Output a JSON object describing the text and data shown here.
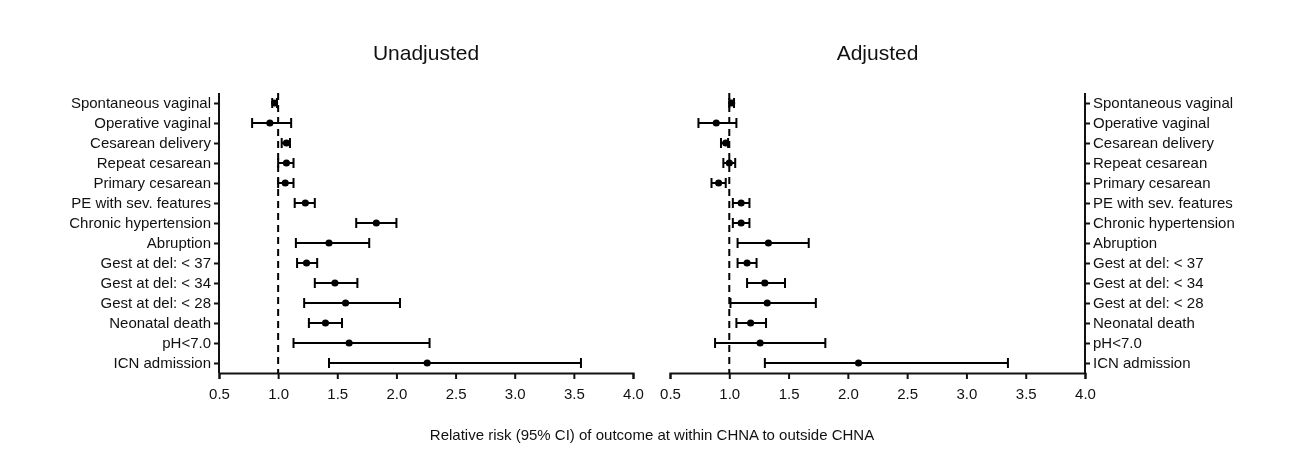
{
  "chart_data": [
    {
      "type": "scatter",
      "title": "Unadjusted",
      "xlabel": "Relative risk (95% CI) of outcome at within CHNA to outside CHNA",
      "orientation": "horizontal",
      "marker": "circle",
      "grid": false,
      "categories": [
        "Spontaneous vaginal",
        "Operative vaginal",
        "Cesarean delivery",
        "Repeat cesarean",
        "Primary cesarean",
        "PE with sev. features",
        "Chronic hypertension",
        "Abruption",
        "Gest at del: < 37",
        "Gest at del: < 34",
        "Gest at del: < 28",
        "Neonatal death",
        "pH<7.0",
        "ICN admission"
      ],
      "series": [
        {
          "color": "#000000",
          "values": [
            0.97,
            0.93,
            1.07,
            1.07,
            1.06,
            1.23,
            1.83,
            1.43,
            1.24,
            1.48,
            1.57,
            1.4,
            1.6,
            2.26
          ],
          "errors": [
            [
              0.95,
              0.99
            ],
            [
              0.78,
              1.11
            ],
            [
              1.03,
              1.1
            ],
            [
              1.0,
              1.13
            ],
            [
              1.0,
              1.13
            ],
            [
              1.14,
              1.31
            ],
            [
              1.66,
              2.0
            ],
            [
              1.15,
              1.77
            ],
            [
              1.16,
              1.33
            ],
            [
              1.31,
              1.67
            ],
            [
              1.22,
              2.03
            ],
            [
              1.26,
              1.54
            ],
            [
              1.13,
              2.28
            ],
            [
              1.43,
              3.56
            ]
          ]
        }
      ],
      "xlim": [
        0.5,
        4.0
      ],
      "xticks": [
        {
          "value": 0.5,
          "label": "0.5"
        },
        {
          "value": 1,
          "label": "1.0"
        },
        {
          "value": 1.5,
          "label": "1.5"
        },
        {
          "value": 2,
          "label": "2.0"
        },
        {
          "value": 2.5,
          "label": "2.5"
        },
        {
          "value": 3,
          "label": "3.0"
        },
        {
          "value": 3.5,
          "label": "3.5"
        },
        {
          "value": 4,
          "label": "4.0"
        }
      ],
      "ref_lines": [
        {
          "axis": "x",
          "value": 1,
          "line_style": "dashed",
          "color": "#000000"
        }
      ]
    },
    {
      "type": "scatter",
      "title": "Adjusted",
      "orientation": "horizontal",
      "marker": "circle",
      "grid": false,
      "categories": [
        "Spontaneous vaginal",
        "Operative vaginal",
        "Cesarean delivery",
        "Repeat cesarean",
        "Primary cesarean",
        "PE with sev. features",
        "Chronic hypertension",
        "Abruption",
        "Gest at del: < 37",
        "Gest at del: < 34",
        "Gest at del: < 28",
        "Neonatal death",
        "pH<7.0",
        "ICN admission"
      ],
      "series": [
        {
          "color": "#000000",
          "values": [
            1.02,
            0.89,
            0.97,
            1.0,
            0.91,
            1.1,
            1.1,
            1.33,
            1.15,
            1.3,
            1.32,
            1.18,
            1.26,
            2.09
          ],
          "errors": [
            [
              1.0,
              1.04
            ],
            [
              0.74,
              1.06
            ],
            [
              0.93,
              0.99
            ],
            [
              0.95,
              1.05
            ],
            [
              0.85,
              0.97
            ],
            [
              1.03,
              1.17
            ],
            [
              1.03,
              1.17
            ],
            [
              1.07,
              1.67
            ],
            [
              1.07,
              1.23
            ],
            [
              1.15,
              1.47
            ],
            [
              1.01,
              1.73
            ],
            [
              1.06,
              1.31
            ],
            [
              0.88,
              1.81
            ],
            [
              1.3,
              3.35
            ]
          ]
        }
      ],
      "xlim": [
        0.5,
        4.0
      ],
      "xticks": [
        {
          "value": 0.5,
          "label": "0.5"
        },
        {
          "value": 1,
          "label": "1.0"
        },
        {
          "value": 1.5,
          "label": "1.5"
        },
        {
          "value": 2,
          "label": "2.0"
        },
        {
          "value": 2.5,
          "label": "2.5"
        },
        {
          "value": 3,
          "label": "3.0"
        },
        {
          "value": 3.5,
          "label": "3.5"
        },
        {
          "value": 4,
          "label": "4.0"
        }
      ],
      "ref_lines": [
        {
          "axis": "x",
          "value": 1,
          "line_style": "dashed",
          "color": "#000000"
        }
      ]
    }
  ]
}
